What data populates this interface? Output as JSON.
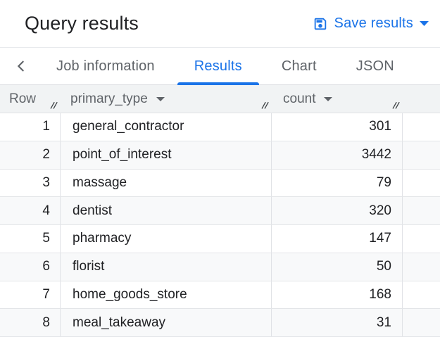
{
  "colors": {
    "accent": "#1a73e8",
    "text_primary": "#202124",
    "text_secondary": "#5f6368",
    "header_row_bg": "#f1f3f4",
    "zebra_row_bg": "#f8f9fa"
  },
  "header": {
    "title": "Query results",
    "save_results_label": "Save results"
  },
  "tab_bar": {
    "tabs": [
      {
        "label": "Job information",
        "active": false
      },
      {
        "label": "Results",
        "active": true
      },
      {
        "label": "Chart",
        "active": false
      },
      {
        "label": "JSON",
        "active": false
      }
    ]
  },
  "table": {
    "columns": [
      {
        "label": "Row",
        "has_menu": false
      },
      {
        "label": "primary_type",
        "has_menu": true
      },
      {
        "label": "count",
        "has_menu": true
      }
    ],
    "rows": [
      {
        "row": "1",
        "primary_type": "general_contractor",
        "count": "301"
      },
      {
        "row": "2",
        "primary_type": "point_of_interest",
        "count": "3442"
      },
      {
        "row": "3",
        "primary_type": "massage",
        "count": "79"
      },
      {
        "row": "4",
        "primary_type": "dentist",
        "count": "320"
      },
      {
        "row": "5",
        "primary_type": "pharmacy",
        "count": "147"
      },
      {
        "row": "6",
        "primary_type": "florist",
        "count": "50"
      },
      {
        "row": "7",
        "primary_type": "home_goods_store",
        "count": "168"
      },
      {
        "row": "8",
        "primary_type": "meal_takeaway",
        "count": "31"
      }
    ]
  }
}
